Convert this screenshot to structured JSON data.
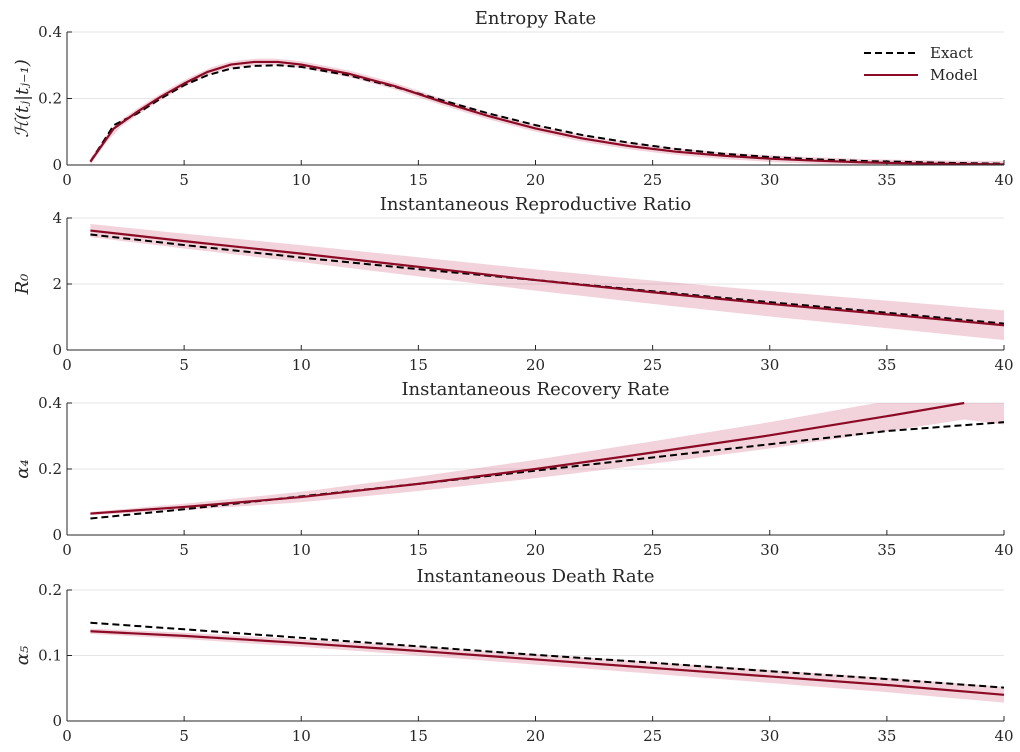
{
  "legend": {
    "exact_label": "Exact",
    "model_label": "Model"
  },
  "colors": {
    "model": "#8B0A25",
    "band": "#C8385A",
    "exact": "#000000",
    "axis": "#262626",
    "grid": "#e6e6e6"
  },
  "chart_data": [
    {
      "type": "line",
      "title": "Entropy Rate",
      "ylabel": "ℋ(tⱼ|tⱼ₋₁)",
      "xlim": [
        0,
        40
      ],
      "ylim": [
        0,
        0.4
      ],
      "xticks": [
        0,
        5,
        10,
        15,
        20,
        25,
        30,
        35,
        40
      ],
      "yticks": [
        0,
        0.2,
        0.4
      ],
      "grid": true,
      "legend_position": "top-right",
      "x": [
        1,
        2,
        3,
        4,
        5,
        6,
        7,
        8,
        9,
        10,
        12,
        14,
        16,
        18,
        20,
        22,
        24,
        26,
        28,
        30,
        32,
        34,
        36,
        38,
        40
      ],
      "series": [
        {
          "name": "Exact",
          "style": "dashed",
          "values": [
            0.01,
            0.12,
            0.155,
            0.2,
            0.24,
            0.27,
            0.29,
            0.298,
            0.3,
            0.295,
            0.27,
            0.235,
            0.195,
            0.155,
            0.12,
            0.09,
            0.067,
            0.048,
            0.034,
            0.024,
            0.017,
            0.012,
            0.009,
            0.006,
            0.004
          ]
        },
        {
          "name": "Model",
          "style": "solid",
          "values": [
            0.01,
            0.11,
            0.16,
            0.205,
            0.245,
            0.28,
            0.302,
            0.31,
            0.31,
            0.302,
            0.275,
            0.237,
            0.19,
            0.147,
            0.11,
            0.08,
            0.057,
            0.04,
            0.028,
            0.019,
            0.013,
            0.008,
            0.005,
            0.003,
            0.002
          ]
        }
      ],
      "band_halfwidth": 0.01
    },
    {
      "type": "line",
      "title": "Instantaneous Reproductive Ratio",
      "ylabel": "R₀",
      "xlim": [
        0,
        40
      ],
      "ylim": [
        0,
        4
      ],
      "xticks": [
        0,
        5,
        10,
        15,
        20,
        25,
        30,
        35,
        40
      ],
      "yticks": [
        0,
        2,
        4
      ],
      "grid": true,
      "x": [
        1,
        5,
        10,
        15,
        20,
        25,
        30,
        35,
        40
      ],
      "series": [
        {
          "name": "Exact",
          "style": "dashed",
          "values": [
            3.5,
            3.18,
            2.8,
            2.45,
            2.12,
            1.78,
            1.45,
            1.13,
            0.8
          ]
        },
        {
          "name": "Model",
          "style": "solid",
          "values": [
            3.62,
            3.3,
            2.92,
            2.52,
            2.12,
            1.75,
            1.4,
            1.08,
            0.75
          ]
        }
      ],
      "band_halfwidth_start": 0.2,
      "band_halfwidth_end": 0.45
    },
    {
      "type": "line",
      "title": "Instantaneous Recovery Rate",
      "ylabel": "α₄",
      "xlim": [
        0,
        40
      ],
      "ylim": [
        0,
        0.4
      ],
      "xticks": [
        0,
        5,
        10,
        15,
        20,
        25,
        30,
        35,
        40
      ],
      "yticks": [
        0,
        0.2,
        0.4
      ],
      "grid": true,
      "x": [
        1,
        5,
        10,
        15,
        20,
        25,
        30,
        35,
        38.3
      ],
      "series": [
        {
          "name": "Exact",
          "style": "dashed",
          "values": [
            0.05,
            0.078,
            0.117,
            0.155,
            0.195,
            0.235,
            0.275,
            0.315,
            0.342
          ],
          "x": [
            1,
            5,
            10,
            15,
            20,
            25,
            30,
            35,
            40
          ]
        },
        {
          "name": "Model",
          "style": "solid",
          "values": [
            0.065,
            0.085,
            0.115,
            0.155,
            0.2,
            0.25,
            0.302,
            0.36,
            0.4
          ]
        }
      ],
      "band_halfwidth_start": 0.005,
      "band_halfwidth_end": 0.05
    },
    {
      "type": "line",
      "title": "Instantaneous Death Rate",
      "ylabel": "α₅",
      "xlim": [
        0,
        40
      ],
      "ylim": [
        0,
        0.2
      ],
      "xticks": [
        0,
        5,
        10,
        15,
        20,
        25,
        30,
        35,
        40
      ],
      "yticks": [
        0,
        0.1,
        0.2
      ],
      "grid": true,
      "x": [
        1,
        5,
        10,
        15,
        20,
        25,
        30,
        35,
        40
      ],
      "series": [
        {
          "name": "Exact",
          "style": "dashed",
          "values": [
            0.15,
            0.14,
            0.127,
            0.114,
            0.101,
            0.089,
            0.076,
            0.064,
            0.051
          ]
        },
        {
          "name": "Model",
          "style": "solid",
          "values": [
            0.137,
            0.13,
            0.119,
            0.107,
            0.094,
            0.081,
            0.068,
            0.055,
            0.04
          ]
        }
      ],
      "band_halfwidth_start": 0.004,
      "band_halfwidth_end": 0.012
    }
  ]
}
